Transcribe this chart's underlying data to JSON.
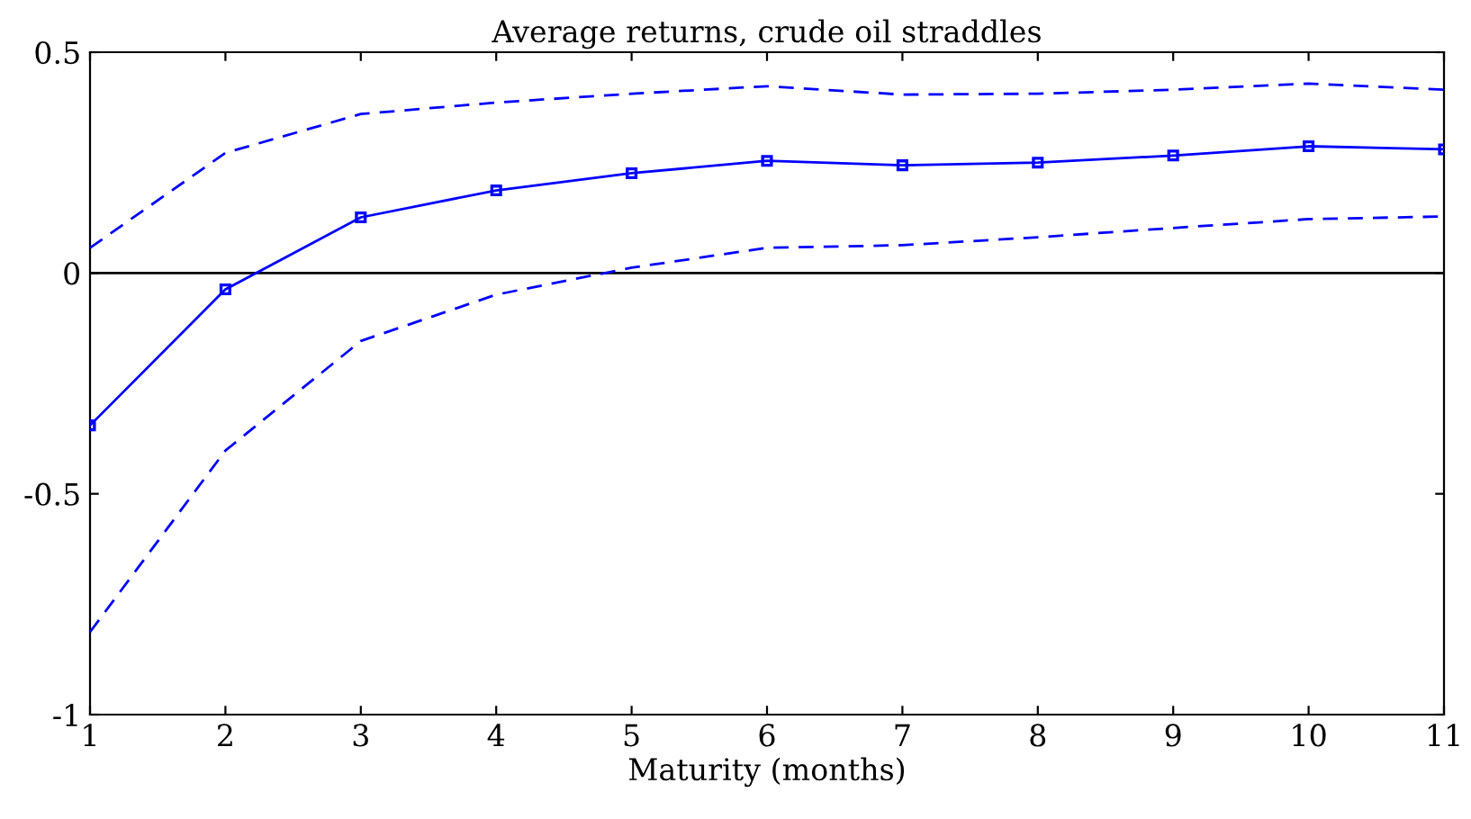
{
  "chart_data": {
    "type": "line",
    "title": "Average returns, crude oil straddles",
    "xlabel": "Maturity (months)",
    "x": [
      1,
      2,
      3,
      4,
      5,
      6,
      7,
      8,
      9,
      10,
      11
    ],
    "series": [
      {
        "color": "#0000ff",
        "marker": "square",
        "line_style": "solid",
        "values": [
          -0.345,
          -0.037,
          0.126,
          0.187,
          0.226,
          0.254,
          0.244,
          0.25,
          0.266,
          0.287,
          0.28
        ]
      },
      {
        "color": "#0000ff",
        "marker": "none",
        "line_style": "dashed",
        "values": [
          0.057,
          0.272,
          0.36,
          0.386,
          0.406,
          0.423,
          0.404,
          0.406,
          0.415,
          0.429,
          0.415
        ]
      },
      {
        "color": "#0000ff",
        "marker": "none",
        "line_style": "dashed",
        "values": [
          -0.813,
          -0.402,
          -0.154,
          -0.049,
          0.012,
          0.057,
          0.063,
          0.081,
          0.102,
          0.122,
          0.128
        ]
      }
    ],
    "xlim": [
      1,
      11
    ],
    "xticks": [
      1,
      2,
      3,
      4,
      5,
      6,
      7,
      8,
      9,
      10,
      11
    ],
    "ylim": [
      -1,
      0.5
    ],
    "yticks": [
      {
        "value": -1,
        "label": "-1"
      },
      {
        "value": -0.5,
        "label": "-0.5"
      },
      0,
      0.5
    ],
    "ref_lines": [
      {
        "axis": "y",
        "value": 0,
        "color": "#000000"
      }
    ],
    "grid": false,
    "legend": false
  }
}
